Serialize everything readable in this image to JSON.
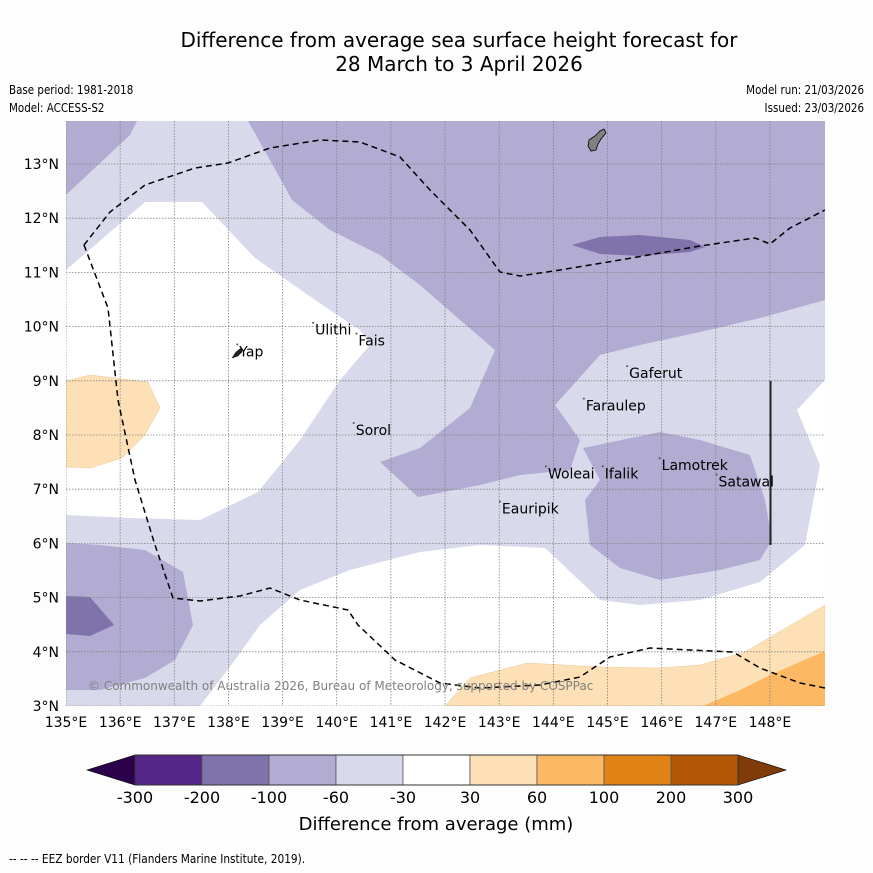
{
  "header": {
    "title_line1": "Difference from average sea surface height forecast for",
    "title_line2": "28 March to 3 April 2026",
    "base_period": "Base period: 1981-2018",
    "model": "Model: ACCESS-S2",
    "model_run": "Model run: 21/03/2026",
    "issued": "Issued: 23/03/2026"
  },
  "map": {
    "lon_range": [
      135,
      149
    ],
    "lat_range": [
      3,
      13.8
    ],
    "lon_ticks": [
      "135°E",
      "136°E",
      "137°E",
      "138°E",
      "139°E",
      "140°E",
      "141°E",
      "142°E",
      "143°E",
      "144°E",
      "145°E",
      "146°E",
      "147°E",
      "148°E"
    ],
    "lat_ticks": [
      "3°N",
      "4°N",
      "5°N",
      "6°N",
      "7°N",
      "8°N",
      "9°N",
      "10°N",
      "11°N",
      "12°N",
      "13°N"
    ],
    "places": [
      {
        "name": "Yap",
        "lon": 138.2,
        "lat": 9.45
      },
      {
        "name": "Ulithi",
        "lon": 139.6,
        "lat": 9.85
      },
      {
        "name": "Fais",
        "lon": 140.4,
        "lat": 9.65
      },
      {
        "name": "Sorol",
        "lon": 140.35,
        "lat": 8.0
      },
      {
        "name": "Gaferut",
        "lon": 145.4,
        "lat": 9.05
      },
      {
        "name": "Faraulep",
        "lon": 144.6,
        "lat": 8.45
      },
      {
        "name": "Woleai",
        "lon": 143.9,
        "lat": 7.2
      },
      {
        "name": "Ifalik",
        "lon": 144.95,
        "lat": 7.2
      },
      {
        "name": "Eauripik",
        "lon": 143.05,
        "lat": 6.55
      },
      {
        "name": "Lamotrek",
        "lon": 146.0,
        "lat": 7.35
      },
      {
        "name": "Satawal",
        "lon": 147.05,
        "lat": 7.05
      }
    ],
    "copyright": "© Commonwealth of Australia 2026, Bureau of Meteorology, supported by COSPPac",
    "contour_colors": {
      "lt_-300": "#2d004b",
      "-300_-200": "#542788",
      "-200_-100": "#8073ac",
      "-100_-60": "#b2abd2",
      "-60_-30": "#d8daeb",
      "-30_30": "#ffffff",
      "30_60": "#fee0b6",
      "60_100": "#fdb863",
      "100_200": "#e08214",
      "200_300": "#b35806",
      "gt_300": "#7f3b08"
    },
    "eez_border_style": "dashed"
  },
  "colorbar": {
    "title": "Difference from average (mm)",
    "levels": [
      "-300",
      "-200",
      "-100",
      "-60",
      "-30",
      "30",
      "60",
      "100",
      "200",
      "300"
    ],
    "colors": [
      "#542788",
      "#8073ac",
      "#b2abd2",
      "#d8daeb",
      "#ffffff",
      "#fee0b6",
      "#fdb863",
      "#e08214",
      "#b35806"
    ],
    "under_color": "#2d004b",
    "over_color": "#7f3b08"
  },
  "footer": {
    "eez_note": "--  --  -- EEZ border V11 (Flanders Marine Institute, 2019)."
  }
}
